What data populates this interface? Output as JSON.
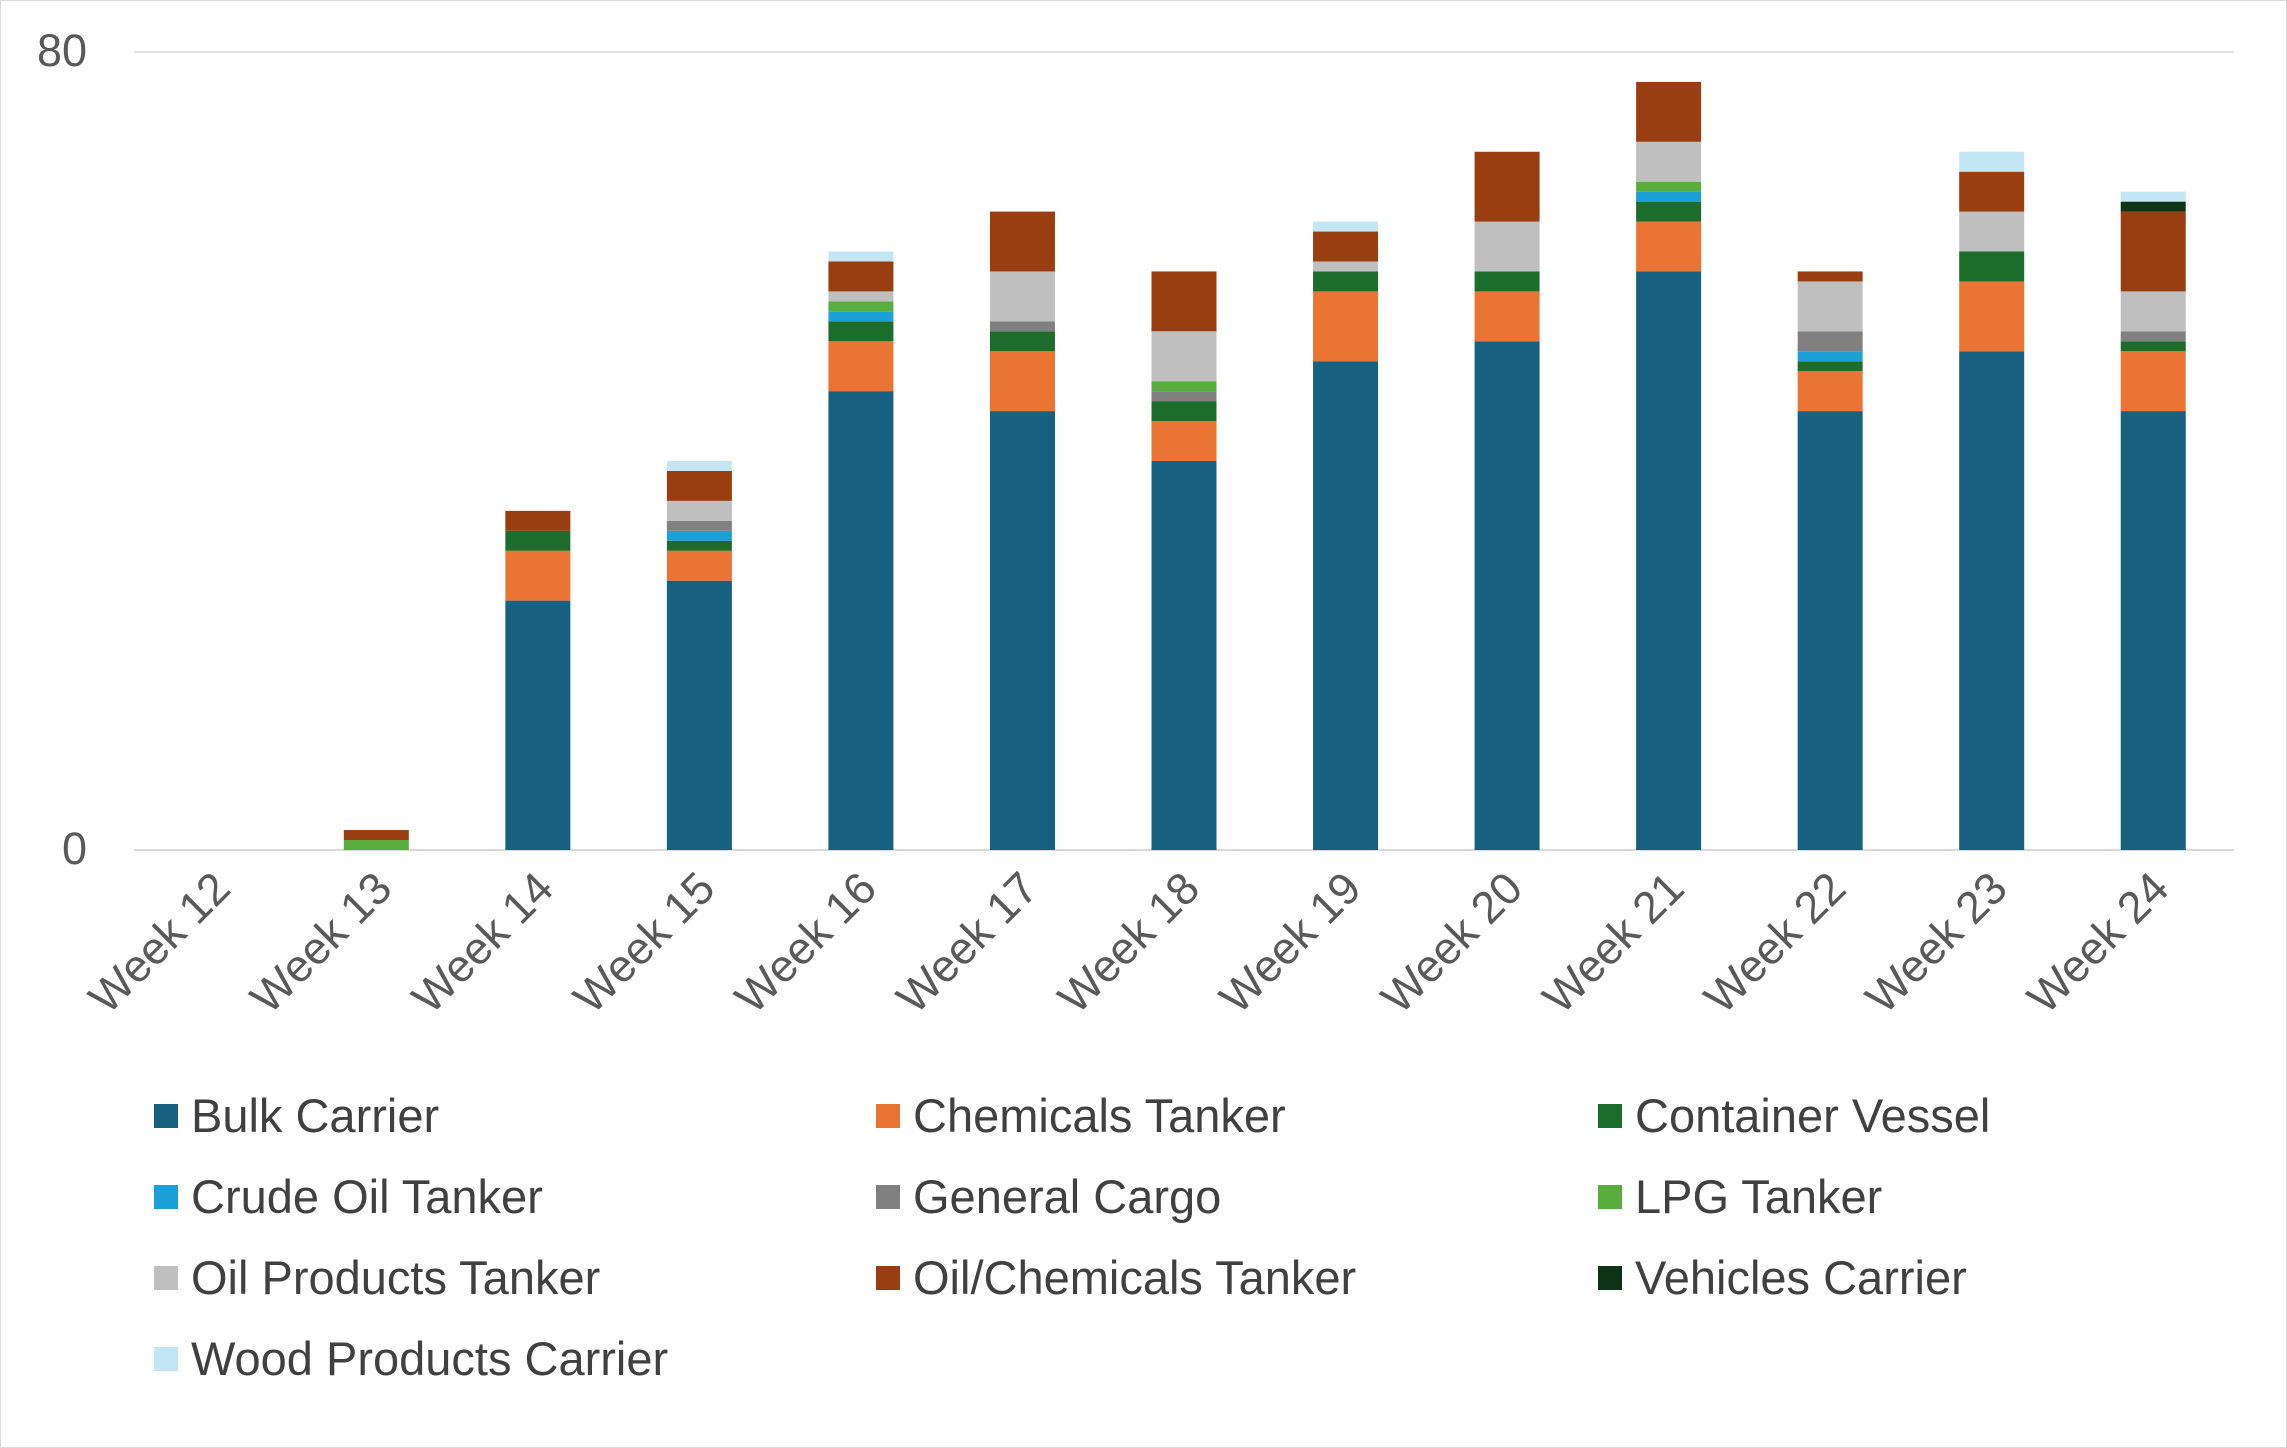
{
  "chart_data": {
    "type": "bar",
    "stacked": true,
    "title": "",
    "xlabel": "",
    "ylabel": "",
    "ylim": [
      0,
      80
    ],
    "yticks": [
      0,
      80
    ],
    "grid": true,
    "legend_position": "bottom",
    "categories": [
      "Week 12",
      "Week 13",
      "Week 14",
      "Week 15",
      "Week 16",
      "Week 17",
      "Week 18",
      "Week 19",
      "Week 20",
      "Week 21",
      "Week 22",
      "Week 23",
      "Week 24"
    ],
    "series": [
      {
        "name": "Bulk Carrier",
        "color": "#17607f",
        "values": [
          0,
          0,
          25,
          27,
          46,
          44,
          39,
          49,
          51,
          58,
          44,
          50,
          44
        ]
      },
      {
        "name": "Chemicals Tanker",
        "color": "#ea7434",
        "values": [
          0,
          0,
          5,
          3,
          5,
          6,
          4,
          7,
          5,
          5,
          4,
          7,
          6
        ]
      },
      {
        "name": "Container Vessel",
        "color": "#1c6d2b",
        "values": [
          0,
          0,
          2,
          1,
          2,
          2,
          2,
          2,
          2,
          2,
          1,
          3,
          1
        ]
      },
      {
        "name": "Crude Oil Tanker",
        "color": "#1d9fd8",
        "values": [
          0,
          0,
          0,
          1,
          1,
          0,
          0,
          0,
          0,
          1,
          1,
          0,
          0
        ]
      },
      {
        "name": "General Cargo",
        "color": "#808080",
        "values": [
          0,
          0,
          0,
          1,
          0,
          1,
          1,
          0,
          0,
          0,
          2,
          0,
          1
        ]
      },
      {
        "name": "LPG Tanker",
        "color": "#58ad3c",
        "values": [
          0,
          1,
          0,
          0,
          1,
          0,
          1,
          0,
          0,
          1,
          0,
          0,
          0
        ]
      },
      {
        "name": "Oil Products Tanker",
        "color": "#bfbfbf",
        "values": [
          0,
          0,
          0,
          2,
          1,
          5,
          5,
          1,
          5,
          4,
          5,
          4,
          4
        ]
      },
      {
        "name": "Oil/Chemicals Tanker",
        "color": "#983e10",
        "values": [
          0,
          1,
          2,
          3,
          3,
          6,
          6,
          3,
          7,
          6,
          1,
          4,
          8
        ]
      },
      {
        "name": "Vehicles Carrier",
        "color": "#0f3316",
        "values": [
          0,
          0,
          0,
          0,
          0,
          0,
          0,
          0,
          0,
          0,
          0,
          0,
          1
        ]
      },
      {
        "name": "Wood Products Carrier",
        "color": "#c3e6f5",
        "values": [
          0,
          0,
          0,
          1,
          1,
          0,
          0,
          1,
          0,
          0,
          0,
          2,
          1
        ]
      }
    ]
  }
}
